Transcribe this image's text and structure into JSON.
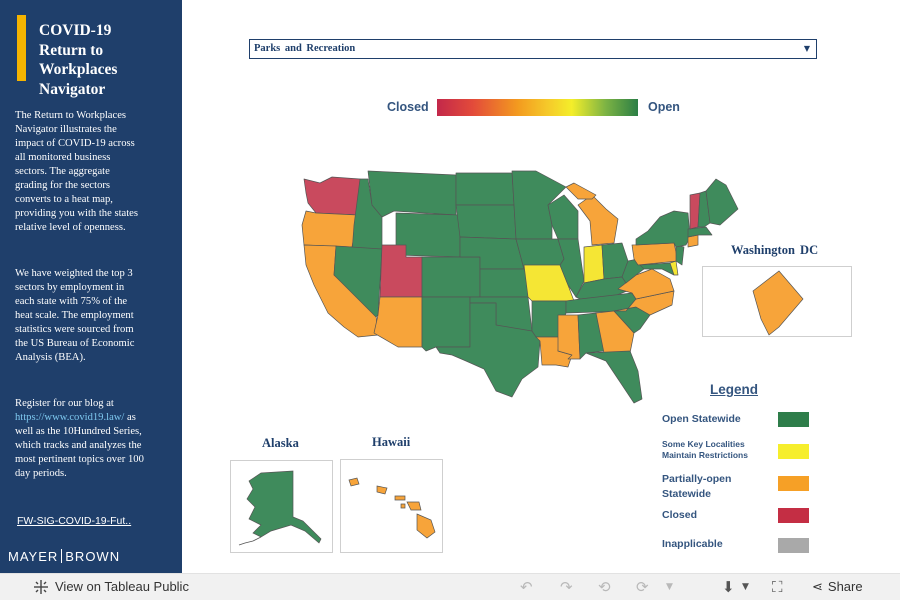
{
  "sidebar": {
    "title_lines": [
      "COVID-19",
      "Return to",
      "Workplaces",
      "Navigator"
    ],
    "desc1": "The Return to Workplaces Navigator illustrates the impact of COVID-19 across all monitored business sectors.  The aggregate grading for the sectors converts to a heat map, providing you with the states relative level of openness.",
    "desc2": "We have weighted the top 3 sectors by employment in each state with 75% of the heat scale. The employment statistics were sourced from the US Bureau of Economic Analysis (BEA).",
    "desc3_prefix": "Register for our blog at ",
    "desc3_link": "https://www.covid19.law/",
    "desc3_suffix": " as well as the 10Hundred Series, which tracks and analyzes the most pertinent topics over 100 day periods.",
    "file_link": "FW-SIG-COVID-19-Fut..",
    "brand_left": "MAYER",
    "brand_right": "BROWN"
  },
  "filter": {
    "selected": "Parks and Recreation",
    "arrow_icon": "chevron-down-icon"
  },
  "scale": {
    "closed_label": "Closed",
    "open_label": "Open"
  },
  "insets": {
    "dc_title": "Washington DC",
    "alaska_title": "Alaska",
    "hawaii_title": "Hawaii"
  },
  "legend": {
    "title": "Legend",
    "items": [
      {
        "label": "Open Statewide",
        "color": "#2e7d4a"
      },
      {
        "label": "Some Key Localities Maintain Restrictions",
        "color": "#f6ee2c"
      },
      {
        "label": "Partially-open Statewide",
        "color": "#f6a026"
      },
      {
        "label": "Closed",
        "color": "#c42e44"
      },
      {
        "label": "Inapplicable",
        "color": "#a9a9a9"
      }
    ]
  },
  "colors": {
    "open": "#3f8b5c",
    "restrictions": "#f5e634",
    "partial": "#f7a43a",
    "closed": "#c94a5e",
    "navy": "#1f3f6b"
  },
  "toolbar": {
    "view_label": "View on Tableau Public",
    "share_label": "Share"
  }
}
